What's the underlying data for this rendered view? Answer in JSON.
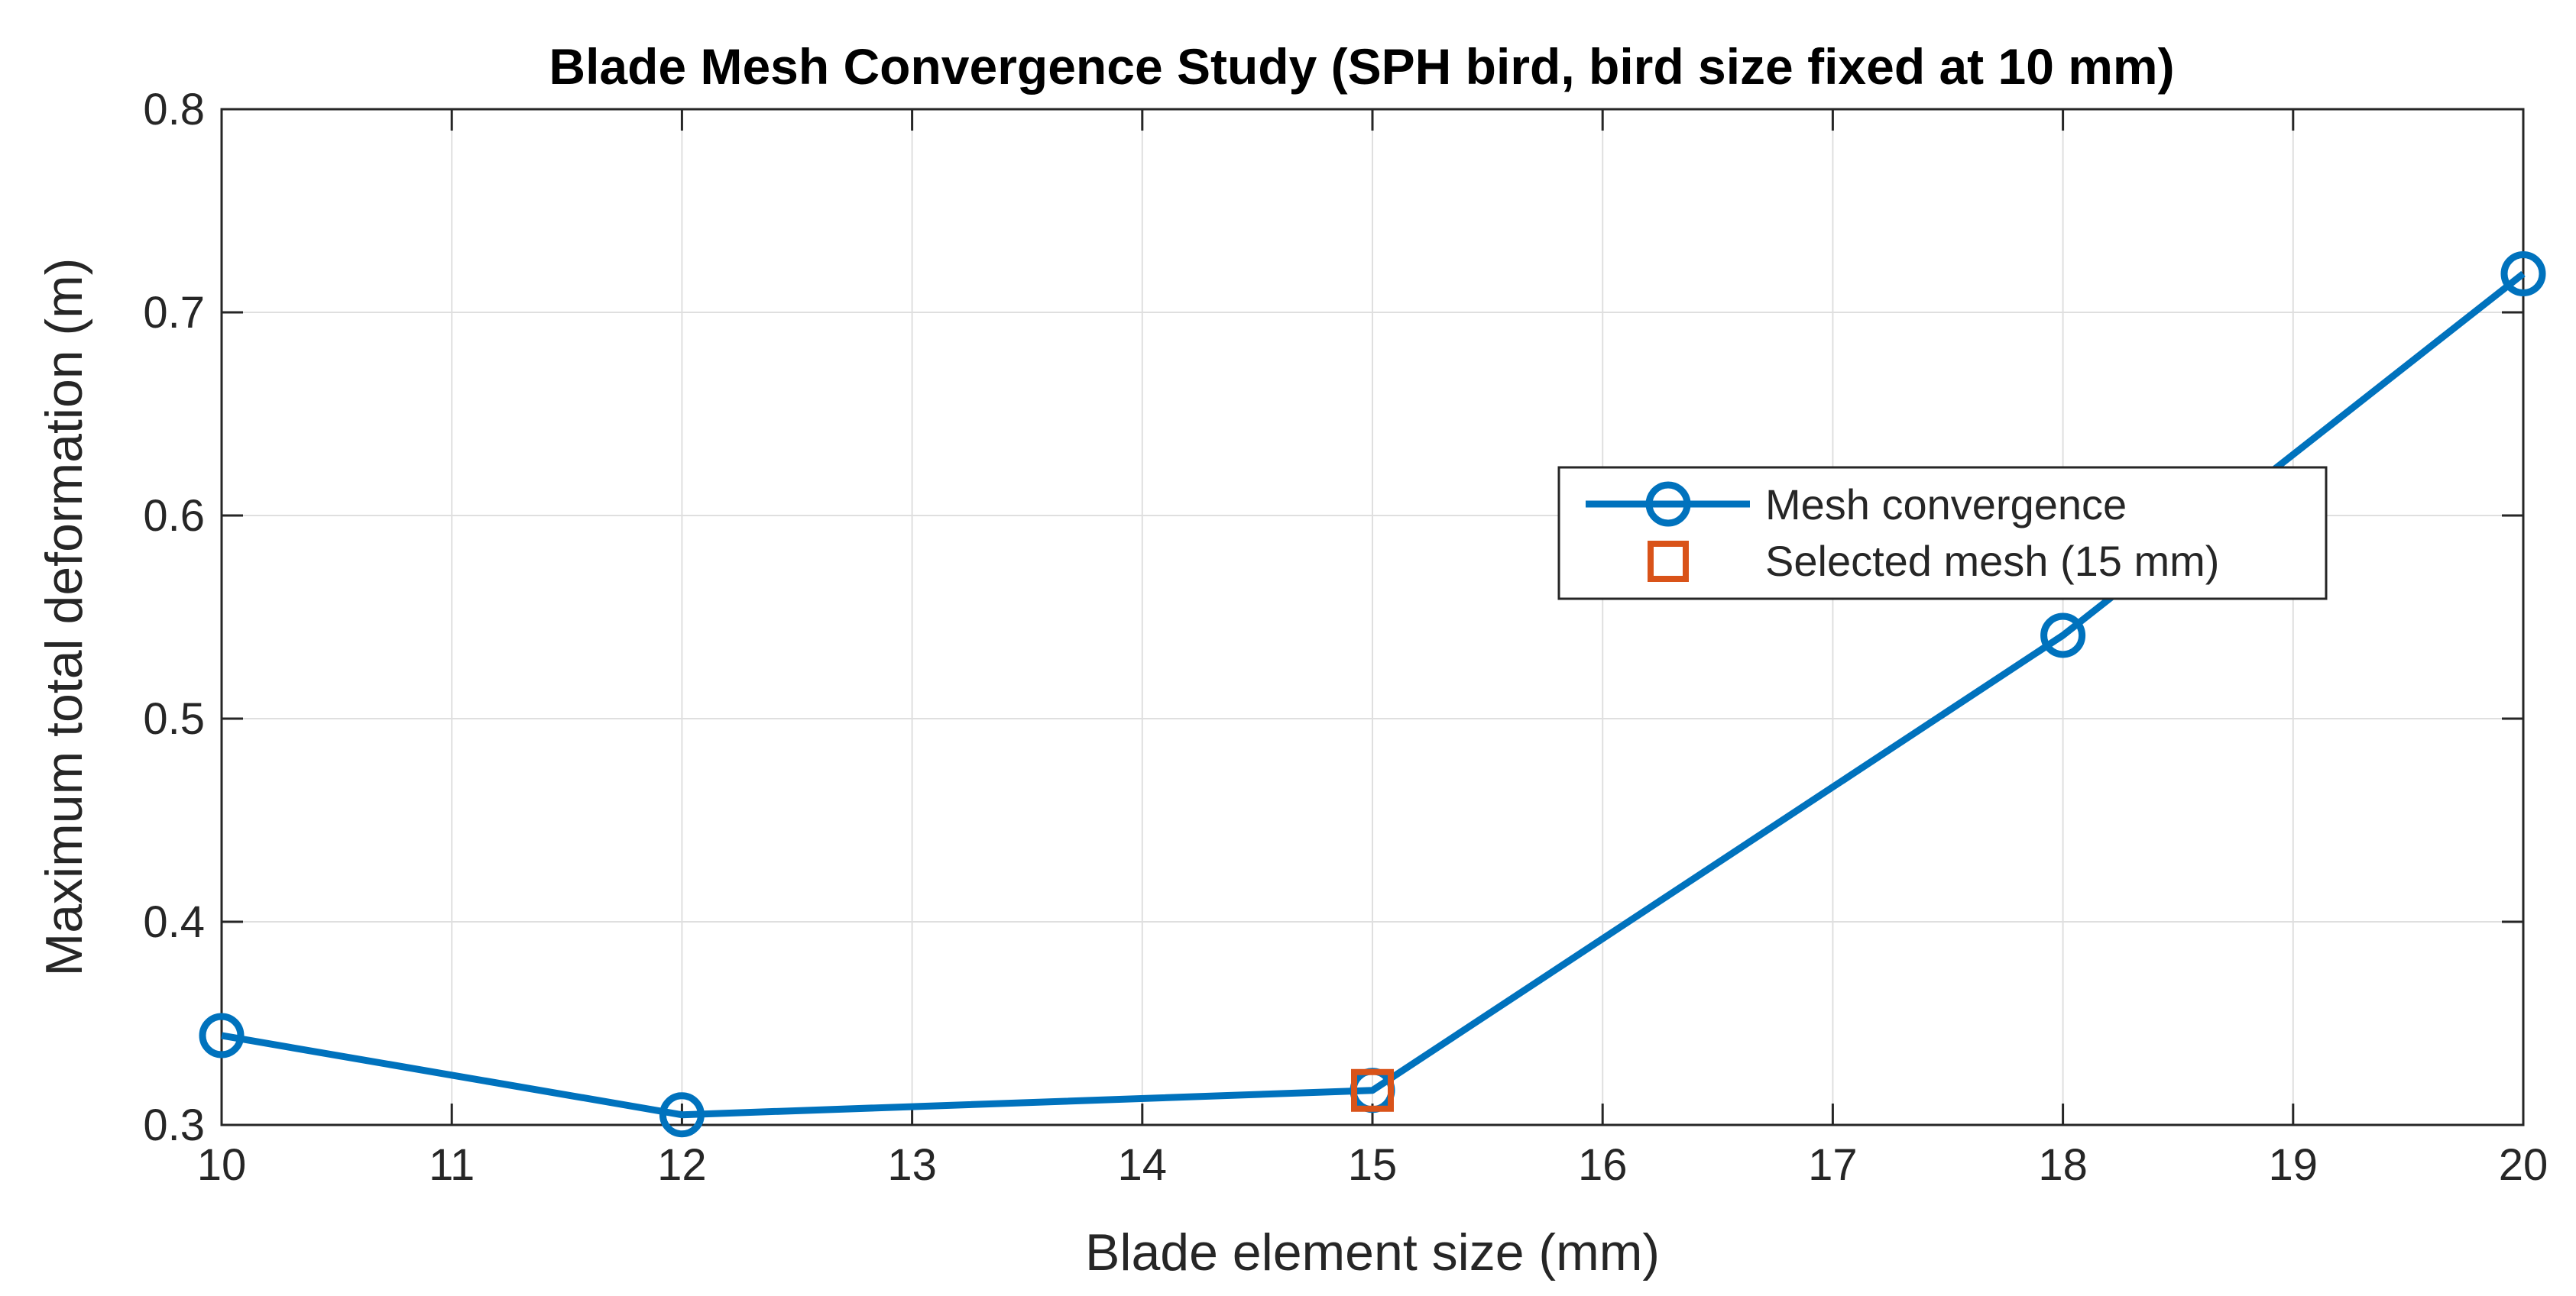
{
  "chart_data": {
    "type": "line",
    "title": "Blade Mesh Convergence Study (SPH bird, bird size fixed at 10 mm)",
    "xlabel": "Blade element size (mm)",
    "ylabel": "Maximum total deformation (m)",
    "xlim": [
      10,
      20
    ],
    "ylim": [
      0.3,
      0.8
    ],
    "xticks": [
      10,
      11,
      12,
      13,
      14,
      15,
      16,
      17,
      18,
      19,
      20
    ],
    "yticks": [
      "0.3",
      "0.4",
      "0.5",
      "0.6",
      "0.7",
      "0.8"
    ],
    "grid": true,
    "legend_position": "right",
    "series": [
      {
        "name": "Mesh convergence",
        "x": [
          10,
          12,
          15,
          18,
          20
        ],
        "y": [
          0.344,
          0.305,
          0.317,
          0.541,
          0.719
        ],
        "color": "#0072BD",
        "marker": "circle"
      },
      {
        "name": "Selected mesh (15 mm)",
        "x": [
          15
        ],
        "y": [
          0.317
        ],
        "color": "#D95319",
        "marker": "square"
      }
    ]
  }
}
